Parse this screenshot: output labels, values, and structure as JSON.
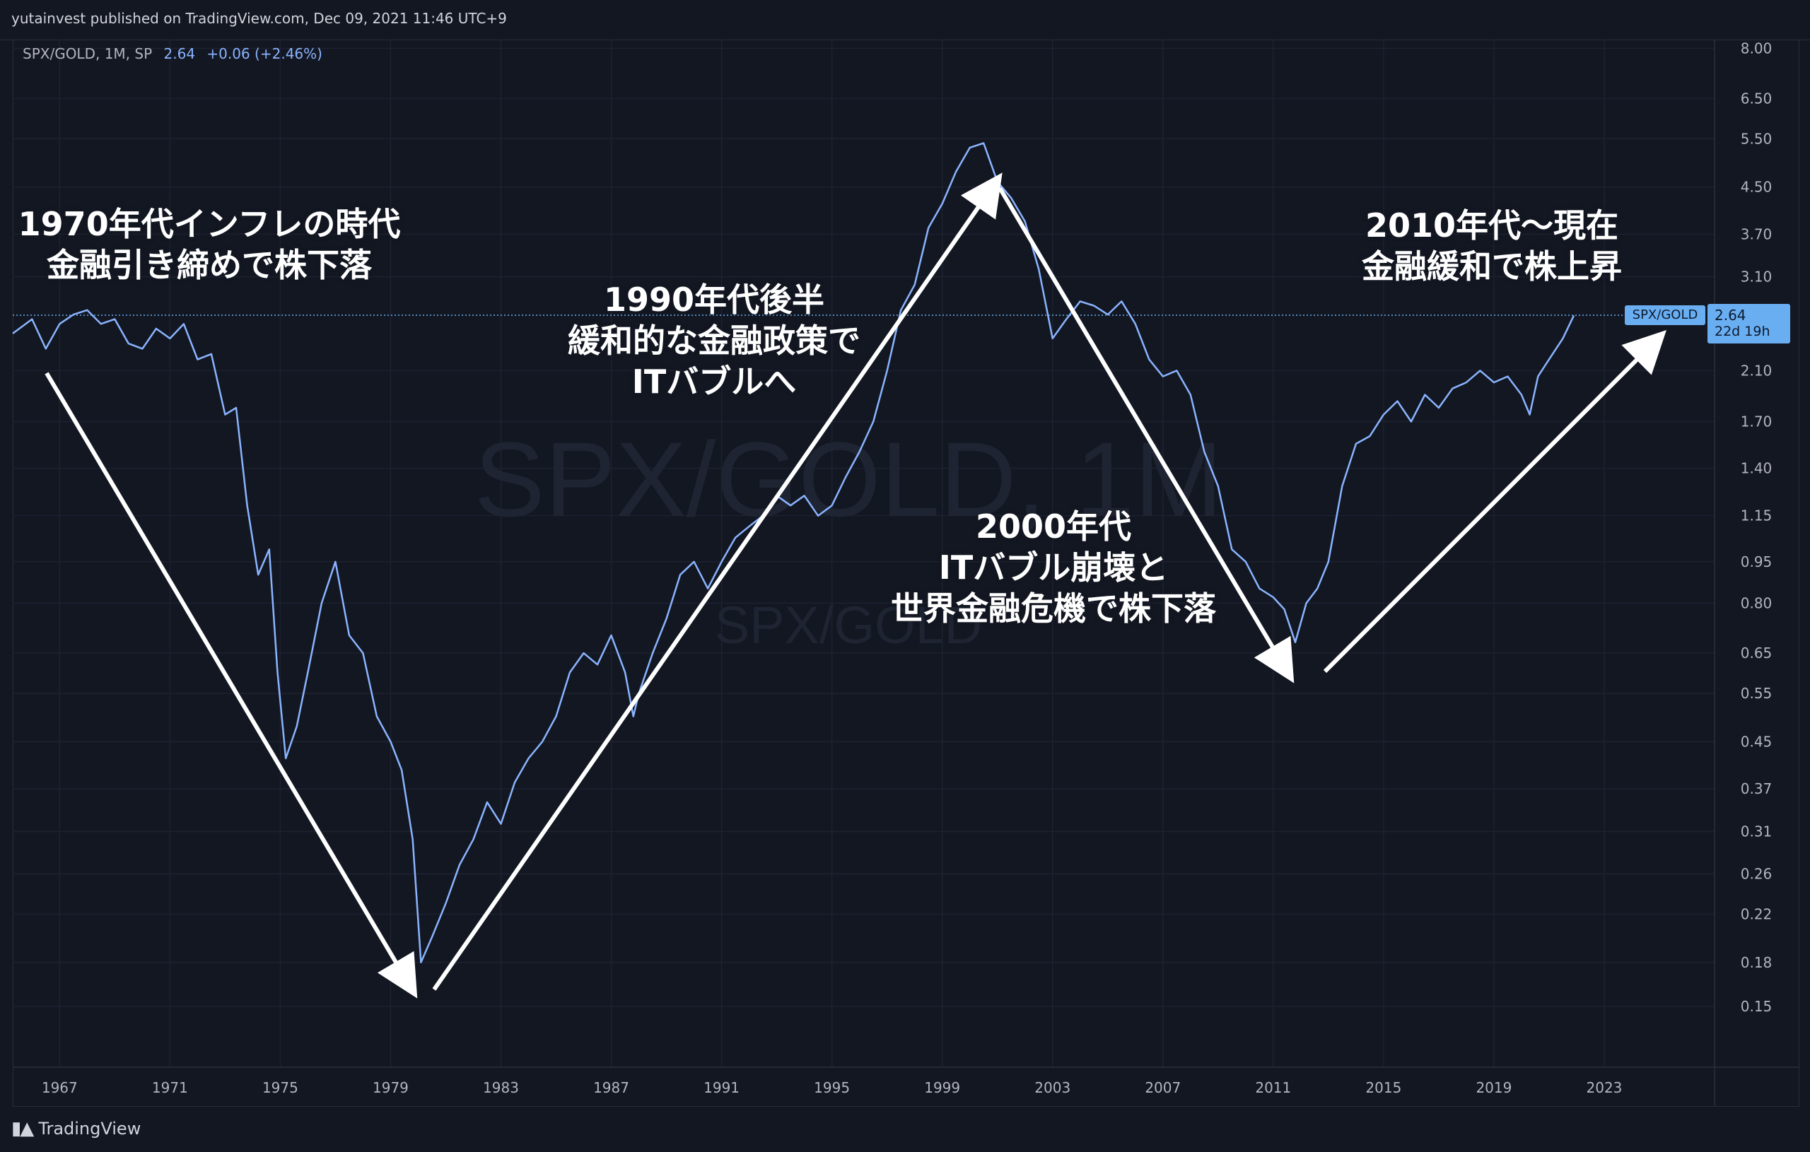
{
  "publisher": "yutainvest published on TradingView.com, Dec 09, 2021 11:46 UTC+9",
  "legend": {
    "symbol": "SPX/GOLD, 1M, SP",
    "value": "2.64",
    "change": "+0.06 (+2.46%)"
  },
  "watermark": {
    "main": "SPX/GOLD, 1M",
    "sub": "SPX/GOLD"
  },
  "price_label": {
    "series": "SPX/GOLD",
    "price": "2.64",
    "countdown": "22d 19h"
  },
  "brand": "TradingView",
  "annotations": {
    "a1970s": [
      "1970年代インフレの時代",
      "金融引き締めで株下落"
    ],
    "a1990s": [
      "1990年代後半",
      "緩和的な金融政策で",
      "ITバブルへ"
    ],
    "a2000s": [
      "2000年代",
      "ITバブル崩壊と",
      "世界金融危機で株下落"
    ],
    "a2010s": [
      "2010年代〜現在",
      "金融緩和で株上昇"
    ]
  },
  "colors": {
    "background": "#131722",
    "line": "#8ab4ff",
    "grid": "#1e2230",
    "text": "#d1d4dc",
    "arrow": "#ffffff",
    "tag": "#6aaef2"
  },
  "chart_data": {
    "type": "line",
    "log_scale": true,
    "grid": true,
    "ylim": [
      0.12,
      8.3
    ],
    "xlim": [
      1965.3,
      2027.0
    ],
    "y_ticks": [
      "8.00",
      "6.50",
      "5.50",
      "4.50",
      "3.70",
      "3.10",
      "2.10",
      "1.70",
      "1.40",
      "1.15",
      "0.95",
      "0.80",
      "0.65",
      "0.55",
      "0.45",
      "0.37",
      "0.31",
      "0.26",
      "0.22",
      "0.18",
      "0.15"
    ],
    "x_ticks": [
      "1967",
      "1971",
      "1975",
      "1979",
      "1983",
      "1987",
      "1991",
      "1995",
      "1999",
      "2003",
      "2007",
      "2011",
      "2015",
      "2019",
      "2023"
    ],
    "last_price": 2.64,
    "series": [
      {
        "x": [
          1965.3,
          1966.0,
          1966.5,
          1967.0,
          1967.5,
          1968.0,
          1968.5,
          1969.0,
          1969.5,
          1970.0,
          1970.5,
          1971.0,
          1971.5,
          1972.0,
          1972.5,
          1973.0,
          1973.4,
          1973.8,
          1974.2,
          1974.6,
          1974.9,
          1975.2,
          1975.6,
          1976.0,
          1976.5,
          1977.0,
          1977.5,
          1978.0,
          1978.5,
          1979.0,
          1979.4,
          1979.8,
          1980.1,
          1980.5,
          1981.0,
          1981.5,
          1982.0,
          1982.5,
          1983.0,
          1983.5,
          1984.0,
          1984.5,
          1985.0,
          1985.5,
          1986.0,
          1986.5,
          1987.0,
          1987.5,
          1987.8,
          1988.0,
          1988.5,
          1989.0,
          1989.5,
          1990.0,
          1990.5,
          1991.0,
          1991.5,
          1992.0,
          1992.5,
          1993.0,
          1993.5,
          1994.0,
          1994.5,
          1995.0,
          1995.5,
          1996.0,
          1996.5,
          1997.0,
          1997.5,
          1998.0,
          1998.5,
          1999.0,
          1999.5,
          2000.0,
          2000.5,
          2001.0,
          2001.5,
          2002.0,
          2002.5,
          2003.0,
          2003.5,
          2004.0,
          2004.5,
          2005.0,
          2005.5,
          2006.0,
          2006.5,
          2007.0,
          2007.5,
          2008.0,
          2008.5,
          2009.0,
          2009.5,
          2010.0,
          2010.5,
          2011.0,
          2011.4,
          2011.8,
          2012.2,
          2012.6,
          2013.0,
          2013.5,
          2014.0,
          2014.5,
          2015.0,
          2015.5,
          2016.0,
          2016.5,
          2017.0,
          2017.5,
          2018.0,
          2018.5,
          2019.0,
          2019.5,
          2020.0,
          2020.3,
          2020.6,
          2021.0,
          2021.5,
          2021.9
        ],
        "y": [
          2.45,
          2.6,
          2.3,
          2.55,
          2.65,
          2.7,
          2.55,
          2.6,
          2.35,
          2.3,
          2.5,
          2.4,
          2.55,
          2.2,
          2.25,
          1.75,
          1.8,
          1.2,
          0.9,
          1.0,
          0.6,
          0.42,
          0.48,
          0.6,
          0.8,
          0.95,
          0.7,
          0.65,
          0.5,
          0.45,
          0.4,
          0.3,
          0.18,
          0.2,
          0.23,
          0.27,
          0.3,
          0.35,
          0.32,
          0.38,
          0.42,
          0.45,
          0.5,
          0.6,
          0.65,
          0.62,
          0.7,
          0.6,
          0.5,
          0.55,
          0.65,
          0.75,
          0.9,
          0.95,
          0.85,
          0.95,
          1.05,
          1.1,
          1.15,
          1.25,
          1.2,
          1.25,
          1.15,
          1.2,
          1.35,
          1.5,
          1.7,
          2.1,
          2.7,
          3.0,
          3.8,
          4.2,
          4.8,
          5.3,
          5.4,
          4.6,
          4.3,
          3.9,
          3.2,
          2.4,
          2.6,
          2.8,
          2.75,
          2.65,
          2.8,
          2.55,
          2.2,
          2.05,
          2.1,
          1.9,
          1.5,
          1.3,
          1.0,
          0.95,
          0.85,
          0.82,
          0.78,
          0.68,
          0.8,
          0.85,
          0.95,
          1.3,
          1.55,
          1.6,
          1.75,
          1.85,
          1.7,
          1.9,
          1.8,
          1.95,
          2.0,
          2.1,
          2.0,
          2.05,
          1.9,
          1.75,
          2.05,
          2.2,
          2.4,
          2.64
        ]
      }
    ]
  }
}
